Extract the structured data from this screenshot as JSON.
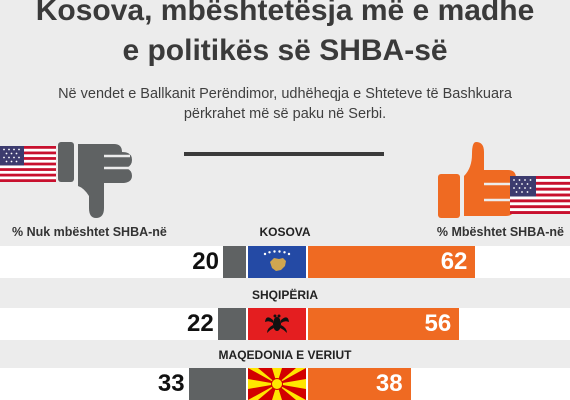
{
  "title_lines": [
    "Kosova, mbështetësja më e madhe",
    "e politikës së SHBA-së"
  ],
  "subtitle_lines": [
    "Në vendet e Ballkanit Perëndimor, udhëheqja e Shteteve të Bashkuara",
    "përkrahet më së paku në Serbi."
  ],
  "icons": {
    "left": [
      "us-flag-icon",
      "thumbs-down-icon"
    ],
    "right": [
      "thumbs-up-icon",
      "us-flag-icon"
    ]
  },
  "colors": {
    "negative": "#5f6263",
    "positive": "#ef6a22",
    "title": "#3a3a3a"
  },
  "chart_data": {
    "type": "bar",
    "orientation": "horizontal-diverging",
    "left_label": "% Nuk mbështet SHBA-në",
    "right_label": "% Mbështet SHBA-në",
    "categories": [
      "KOSOVA",
      "SHQIPËRIA",
      "MAQEDONIA E VERIUT"
    ],
    "series": [
      {
        "name": "% Nuk mbështet SHBA-në",
        "values": [
          20,
          22,
          33
        ]
      },
      {
        "name": "% Mbështet SHBA-në",
        "values": [
          62,
          56,
          38
        ]
      }
    ],
    "flags": [
      "kosovo-flag-icon",
      "albania-flag-icon",
      "north-macedonia-flag-icon"
    ]
  }
}
